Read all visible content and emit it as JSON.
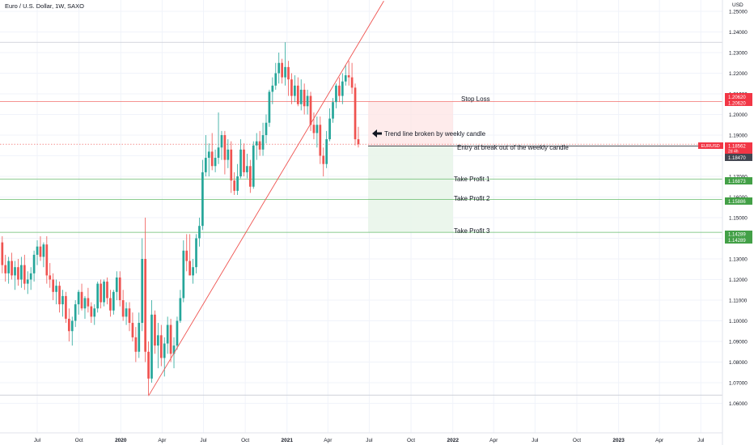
{
  "header": {
    "symbol_title": "Euro / U.S. Dollar, 1W, SAXO",
    "currency": "USD"
  },
  "chart_data": {
    "type": "candlestick",
    "symbol": "EURUSD",
    "interval": "1W",
    "exchange": "SAXO",
    "y_range": [
      1.054,
      1.253
    ],
    "y_ticks": [
      "1.25000",
      "1.24000",
      "1.23000",
      "1.22000",
      "1.21000",
      "1.20000",
      "1.19000",
      "1.18000",
      "1.17000",
      "1.16000",
      "1.15000",
      "1.14000",
      "1.13000",
      "1.12000",
      "1.11000",
      "1.10000",
      "1.09000",
      "1.08000",
      "1.07000",
      "1.06000"
    ],
    "y_tick_values": [
      1.25,
      1.24,
      1.23,
      1.22,
      1.21,
      1.2,
      1.19,
      1.18,
      1.17,
      1.16,
      1.15,
      1.14,
      1.13,
      1.12,
      1.11,
      1.1,
      1.09,
      1.08,
      1.07,
      1.06
    ],
    "x_ticks": [
      {
        "label": "Jul",
        "date": "2019-07-01"
      },
      {
        "label": "Oct",
        "date": "2019-10-01"
      },
      {
        "label": "2020",
        "date": "2020-01-01"
      },
      {
        "label": "Apr",
        "date": "2020-04-01"
      },
      {
        "label": "Jul",
        "date": "2020-07-01"
      },
      {
        "label": "Oct",
        "date": "2020-10-01"
      },
      {
        "label": "2021",
        "date": "2021-01-01"
      },
      {
        "label": "Apr",
        "date": "2021-04-01"
      },
      {
        "label": "Jul",
        "date": "2021-07-01"
      },
      {
        "label": "Oct",
        "date": "2021-10-01"
      },
      {
        "label": "2022",
        "date": "2022-01-01"
      },
      {
        "label": "Apr",
        "date": "2022-04-01"
      },
      {
        "label": "Jul",
        "date": "2022-07-01"
      },
      {
        "label": "Oct",
        "date": "2022-10-01"
      },
      {
        "label": "2023",
        "date": "2023-01-01"
      },
      {
        "label": "Apr",
        "date": "2023-04-01"
      },
      {
        "label": "Jul",
        "date": "2023-07-01"
      }
    ],
    "candles": [
      {
        "o": 1.138,
        "h": 1.141,
        "l": 1.123,
        "c": 1.127
      },
      {
        "o": 1.127,
        "h": 1.132,
        "l": 1.119,
        "c": 1.123
      },
      {
        "o": 1.123,
        "h": 1.131,
        "l": 1.118,
        "c": 1.129
      },
      {
        "o": 1.129,
        "h": 1.133,
        "l": 1.12,
        "c": 1.122
      },
      {
        "o": 1.122,
        "h": 1.129,
        "l": 1.115,
        "c": 1.126
      },
      {
        "o": 1.126,
        "h": 1.13,
        "l": 1.117,
        "c": 1.12
      },
      {
        "o": 1.12,
        "h": 1.131,
        "l": 1.116,
        "c": 1.127
      },
      {
        "o": 1.127,
        "h": 1.132,
        "l": 1.115,
        "c": 1.118
      },
      {
        "o": 1.118,
        "h": 1.124,
        "l": 1.113,
        "c": 1.12
      },
      {
        "o": 1.12,
        "h": 1.126,
        "l": 1.115,
        "c": 1.123
      },
      {
        "o": 1.123,
        "h": 1.134,
        "l": 1.119,
        "c": 1.132
      },
      {
        "o": 1.132,
        "h": 1.139,
        "l": 1.127,
        "c": 1.136
      },
      {
        "o": 1.136,
        "h": 1.141,
        "l": 1.129,
        "c": 1.131
      },
      {
        "o": 1.131,
        "h": 1.138,
        "l": 1.126,
        "c": 1.137
      },
      {
        "o": 1.137,
        "h": 1.141,
        "l": 1.118,
        "c": 1.122
      },
      {
        "o": 1.122,
        "h": 1.128,
        "l": 1.116,
        "c": 1.12
      },
      {
        "o": 1.12,
        "h": 1.123,
        "l": 1.11,
        "c": 1.114
      },
      {
        "o": 1.114,
        "h": 1.12,
        "l": 1.108,
        "c": 1.117
      },
      {
        "o": 1.117,
        "h": 1.119,
        "l": 1.104,
        "c": 1.108
      },
      {
        "o": 1.108,
        "h": 1.115,
        "l": 1.102,
        "c": 1.112
      },
      {
        "o": 1.112,
        "h": 1.114,
        "l": 1.099,
        "c": 1.101
      },
      {
        "o": 1.101,
        "h": 1.106,
        "l": 1.09,
        "c": 1.095
      },
      {
        "o": 1.095,
        "h": 1.102,
        "l": 1.088,
        "c": 1.1
      },
      {
        "o": 1.1,
        "h": 1.11,
        "l": 1.097,
        "c": 1.108
      },
      {
        "o": 1.108,
        "h": 1.115,
        "l": 1.103,
        "c": 1.114
      },
      {
        "o": 1.114,
        "h": 1.118,
        "l": 1.105,
        "c": 1.106
      },
      {
        "o": 1.106,
        "h": 1.112,
        "l": 1.101,
        "c": 1.111
      },
      {
        "o": 1.111,
        "h": 1.116,
        "l": 1.104,
        "c": 1.107
      },
      {
        "o": 1.107,
        "h": 1.109,
        "l": 1.099,
        "c": 1.102
      },
      {
        "o": 1.102,
        "h": 1.108,
        "l": 1.098,
        "c": 1.106
      },
      {
        "o": 1.106,
        "h": 1.119,
        "l": 1.104,
        "c": 1.118
      },
      {
        "o": 1.118,
        "h": 1.12,
        "l": 1.106,
        "c": 1.109
      },
      {
        "o": 1.109,
        "h": 1.12,
        "l": 1.107,
        "c": 1.119
      },
      {
        "o": 1.119,
        "h": 1.121,
        "l": 1.108,
        "c": 1.111
      },
      {
        "o": 1.111,
        "h": 1.115,
        "l": 1.102,
        "c": 1.105
      },
      {
        "o": 1.105,
        "h": 1.115,
        "l": 1.103,
        "c": 1.114
      },
      {
        "o": 1.114,
        "h": 1.124,
        "l": 1.11,
        "c": 1.121
      },
      {
        "o": 1.121,
        "h": 1.124,
        "l": 1.107,
        "c": 1.11
      },
      {
        "o": 1.11,
        "h": 1.115,
        "l": 1.1,
        "c": 1.102
      },
      {
        "o": 1.102,
        "h": 1.109,
        "l": 1.098,
        "c": 1.106
      },
      {
        "o": 1.106,
        "h": 1.109,
        "l": 1.095,
        "c": 1.099
      },
      {
        "o": 1.099,
        "h": 1.104,
        "l": 1.09,
        "c": 1.092
      },
      {
        "o": 1.092,
        "h": 1.097,
        "l": 1.08,
        "c": 1.085
      },
      {
        "o": 1.085,
        "h": 1.104,
        "l": 1.082,
        "c": 1.099
      },
      {
        "o": 1.099,
        "h": 1.14,
        "l": 1.095,
        "c": 1.13
      },
      {
        "o": 1.13,
        "h": 1.15,
        "l": 1.08,
        "c": 1.085
      },
      {
        "o": 1.085,
        "h": 1.09,
        "l": 1.064,
        "c": 1.072
      },
      {
        "o": 1.072,
        "h": 1.11,
        "l": 1.07,
        "c": 1.103
      },
      {
        "o": 1.103,
        "h": 1.105,
        "l": 1.084,
        "c": 1.088
      },
      {
        "o": 1.088,
        "h": 1.099,
        "l": 1.077,
        "c": 1.093
      },
      {
        "o": 1.093,
        "h": 1.098,
        "l": 1.078,
        "c": 1.082
      },
      {
        "o": 1.082,
        "h": 1.092,
        "l": 1.073,
        "c": 1.089
      },
      {
        "o": 1.089,
        "h": 1.102,
        "l": 1.084,
        "c": 1.098
      },
      {
        "o": 1.098,
        "h": 1.101,
        "l": 1.08,
        "c": 1.084
      },
      {
        "o": 1.084,
        "h": 1.092,
        "l": 1.077,
        "c": 1.088
      },
      {
        "o": 1.088,
        "h": 1.102,
        "l": 1.086,
        "c": 1.1
      },
      {
        "o": 1.1,
        "h": 1.115,
        "l": 1.099,
        "c": 1.111
      },
      {
        "o": 1.111,
        "h": 1.139,
        "l": 1.109,
        "c": 1.134
      },
      {
        "o": 1.134,
        "h": 1.142,
        "l": 1.124,
        "c": 1.129
      },
      {
        "o": 1.129,
        "h": 1.142,
        "l": 1.122,
        "c": 1.122
      },
      {
        "o": 1.122,
        "h": 1.13,
        "l": 1.118,
        "c": 1.126
      },
      {
        "o": 1.126,
        "h": 1.142,
        "l": 1.123,
        "c": 1.14
      },
      {
        "o": 1.14,
        "h": 1.15,
        "l": 1.136,
        "c": 1.146
      },
      {
        "o": 1.146,
        "h": 1.178,
        "l": 1.144,
        "c": 1.172
      },
      {
        "o": 1.172,
        "h": 1.19,
        "l": 1.17,
        "c": 1.179
      },
      {
        "o": 1.179,
        "h": 1.186,
        "l": 1.17,
        "c": 1.182
      },
      {
        "o": 1.182,
        "h": 1.191,
        "l": 1.173,
        "c": 1.175
      },
      {
        "o": 1.175,
        "h": 1.183,
        "l": 1.172,
        "c": 1.179
      },
      {
        "o": 1.179,
        "h": 1.201,
        "l": 1.176,
        "c": 1.184
      },
      {
        "o": 1.184,
        "h": 1.192,
        "l": 1.178,
        "c": 1.19
      },
      {
        "o": 1.19,
        "h": 1.192,
        "l": 1.171,
        "c": 1.178
      },
      {
        "o": 1.178,
        "h": 1.188,
        "l": 1.174,
        "c": 1.183
      },
      {
        "o": 1.183,
        "h": 1.187,
        "l": 1.162,
        "c": 1.168
      },
      {
        "o": 1.168,
        "h": 1.172,
        "l": 1.161,
        "c": 1.163
      },
      {
        "o": 1.163,
        "h": 1.176,
        "l": 1.161,
        "c": 1.17
      },
      {
        "o": 1.17,
        "h": 1.188,
        "l": 1.169,
        "c": 1.183
      },
      {
        "o": 1.183,
        "h": 1.186,
        "l": 1.17,
        "c": 1.172
      },
      {
        "o": 1.172,
        "h": 1.181,
        "l": 1.169,
        "c": 1.175
      },
      {
        "o": 1.175,
        "h": 1.178,
        "l": 1.162,
        "c": 1.165
      },
      {
        "o": 1.165,
        "h": 1.187,
        "l": 1.164,
        "c": 1.185
      },
      {
        "o": 1.185,
        "h": 1.191,
        "l": 1.178,
        "c": 1.187
      },
      {
        "o": 1.187,
        "h": 1.192,
        "l": 1.18,
        "c": 1.183
      },
      {
        "o": 1.183,
        "h": 1.196,
        "l": 1.18,
        "c": 1.19
      },
      {
        "o": 1.19,
        "h": 1.2,
        "l": 1.186,
        "c": 1.196
      },
      {
        "o": 1.196,
        "h": 1.212,
        "l": 1.194,
        "c": 1.211
      },
      {
        "o": 1.211,
        "h": 1.218,
        "l": 1.205,
        "c": 1.214
      },
      {
        "o": 1.214,
        "h": 1.225,
        "l": 1.212,
        "c": 1.22
      },
      {
        "o": 1.22,
        "h": 1.23,
        "l": 1.215,
        "c": 1.225
      },
      {
        "o": 1.225,
        "h": 1.227,
        "l": 1.215,
        "c": 1.218
      },
      {
        "o": 1.218,
        "h": 1.235,
        "l": 1.214,
        "c": 1.223
      },
      {
        "o": 1.223,
        "h": 1.226,
        "l": 1.209,
        "c": 1.217
      },
      {
        "o": 1.217,
        "h": 1.22,
        "l": 1.205,
        "c": 1.209
      },
      {
        "o": 1.209,
        "h": 1.219,
        "l": 1.206,
        "c": 1.214
      },
      {
        "o": 1.214,
        "h": 1.218,
        "l": 1.204,
        "c": 1.205
      },
      {
        "o": 1.205,
        "h": 1.217,
        "l": 1.202,
        "c": 1.212
      },
      {
        "o": 1.212,
        "h": 1.215,
        "l": 1.2,
        "c": 1.204
      },
      {
        "o": 1.204,
        "h": 1.212,
        "l": 1.2,
        "c": 1.209
      },
      {
        "o": 1.209,
        "h": 1.211,
        "l": 1.192,
        "c": 1.195
      },
      {
        "o": 1.195,
        "h": 1.201,
        "l": 1.188,
        "c": 1.191
      },
      {
        "o": 1.191,
        "h": 1.199,
        "l": 1.184,
        "c": 1.195
      },
      {
        "o": 1.195,
        "h": 1.199,
        "l": 1.176,
        "c": 1.18
      },
      {
        "o": 1.18,
        "h": 1.184,
        "l": 1.17,
        "c": 1.176
      },
      {
        "o": 1.176,
        "h": 1.192,
        "l": 1.174,
        "c": 1.188
      },
      {
        "o": 1.188,
        "h": 1.203,
        "l": 1.187,
        "c": 1.198
      },
      {
        "o": 1.198,
        "h": 1.208,
        "l": 1.196,
        "c": 1.206
      },
      {
        "o": 1.206,
        "h": 1.215,
        "l": 1.203,
        "c": 1.214
      },
      {
        "o": 1.214,
        "h": 1.218,
        "l": 1.206,
        "c": 1.209
      },
      {
        "o": 1.209,
        "h": 1.22,
        "l": 1.205,
        "c": 1.216
      },
      {
        "o": 1.216,
        "h": 1.224,
        "l": 1.214,
        "c": 1.219
      },
      {
        "o": 1.219,
        "h": 1.226,
        "l": 1.214,
        "c": 1.218
      },
      {
        "o": 1.218,
        "h": 1.225,
        "l": 1.21,
        "c": 1.213
      },
      {
        "o": 1.213,
        "h": 1.215,
        "l": 1.185,
        "c": 1.188
      },
      {
        "o": 1.188,
        "h": 1.194,
        "l": 1.184,
        "c": 1.1856
      }
    ],
    "trend_line": {
      "from": {
        "bar": 46,
        "price": 1.0636
      },
      "to": {
        "bar": 120,
        "price": 1.255
      }
    },
    "levels": [
      {
        "name": "Stop Loss",
        "price": 1.2062,
        "label": "1.20620"
      },
      {
        "name": "Entry",
        "price": 1.1847,
        "label": "1.18470"
      },
      {
        "name": "Take Profit 1",
        "price": 1.16873,
        "label": "1.16873"
      },
      {
        "name": "Take Profit 2",
        "price": 1.15886,
        "label": "1.15886"
      },
      {
        "name": "Take Profit 3",
        "price": 1.14289,
        "label": "1.14289"
      }
    ],
    "horizontal_lines": [
      1.235,
      1.064
    ],
    "last_price": {
      "value": "1.18562",
      "countdown": "2d 4h"
    },
    "colors": {
      "up": "#26a69a",
      "down": "#ef5350",
      "trend": "#ef5350",
      "profit_zone": "#e8f5e9",
      "risk_zone": "#fde4e4",
      "tp_line": "#66bb6a",
      "sl_line": "#ef5350"
    }
  },
  "annotations": {
    "stop_loss": "Stop Loss",
    "trend_break": "Trend line broken by weekly candle",
    "entry": "Entry at break out of the weekly candle",
    "tp1": "Take Profit 1",
    "tp2": "Take Profit 2",
    "tp3": "Take Profit 3"
  },
  "scale_tags": {
    "stop_loss": [
      "1.20620",
      "1.20620"
    ],
    "symbol": "EURUSD",
    "last": "1.18562",
    "countdown": "2d 4h",
    "entry": "1.18470",
    "tp1": [
      "1.16873",
      "1.16873"
    ],
    "tp2": [
      "1.15886",
      "1.15886"
    ],
    "tp3": [
      "1.14289",
      "1.14289"
    ]
  },
  "icons": {
    "trend_arrow": "arrow-left-icon"
  }
}
